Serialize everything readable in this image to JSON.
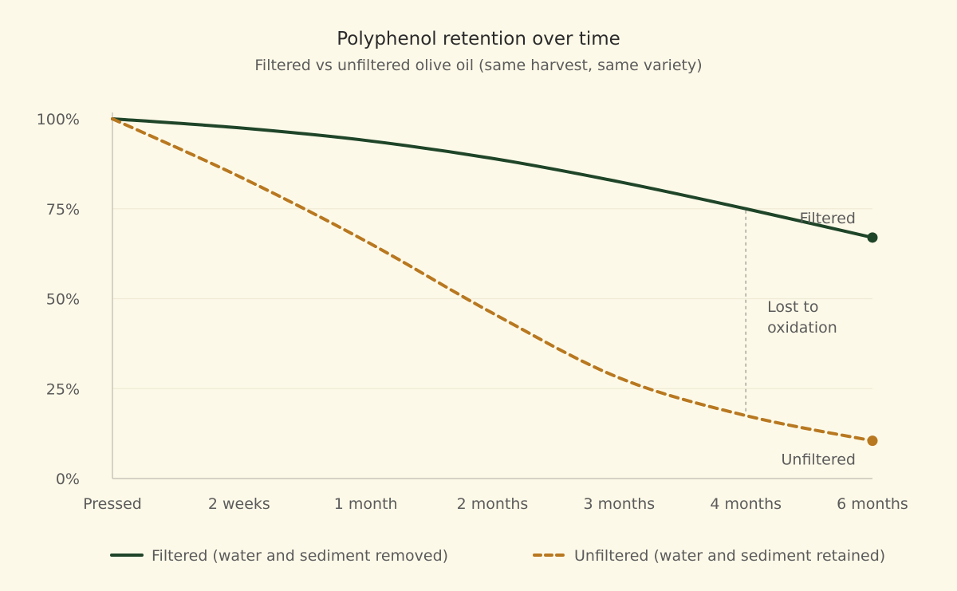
{
  "chart_data": {
    "type": "line",
    "title": "Polyphenol retention over time",
    "subtitle": "Filtered vs unfiltered olive oil (same harvest, same variety)",
    "categories": [
      "Pressed",
      "2 weeks",
      "1 month",
      "2 months",
      "3 months",
      "4 months",
      "6 months"
    ],
    "y_ticks": [
      "0%",
      "25%",
      "50%",
      "75%",
      "100%"
    ],
    "ylim": [
      0,
      100
    ],
    "grid": true,
    "legend_position": "bottom",
    "series": [
      {
        "name": "Filtered (water and sediment removed)",
        "end_label": "Filtered",
        "values": [
          100,
          97.5,
          94,
          89,
          82.5,
          75,
          67
        ],
        "color": "#1f4529",
        "style": "solid"
      },
      {
        "name": "Unfiltered (water and sediment retained)",
        "end_label": "Unfiltered",
        "values": [
          100,
          84,
          66,
          46,
          28,
          17.5,
          10.5
        ],
        "color": "#b87820",
        "style": "dashed"
      }
    ],
    "annotations": [
      {
        "lines": [
          "Lost to",
          "oxidation"
        ],
        "category": "4 months"
      }
    ]
  }
}
